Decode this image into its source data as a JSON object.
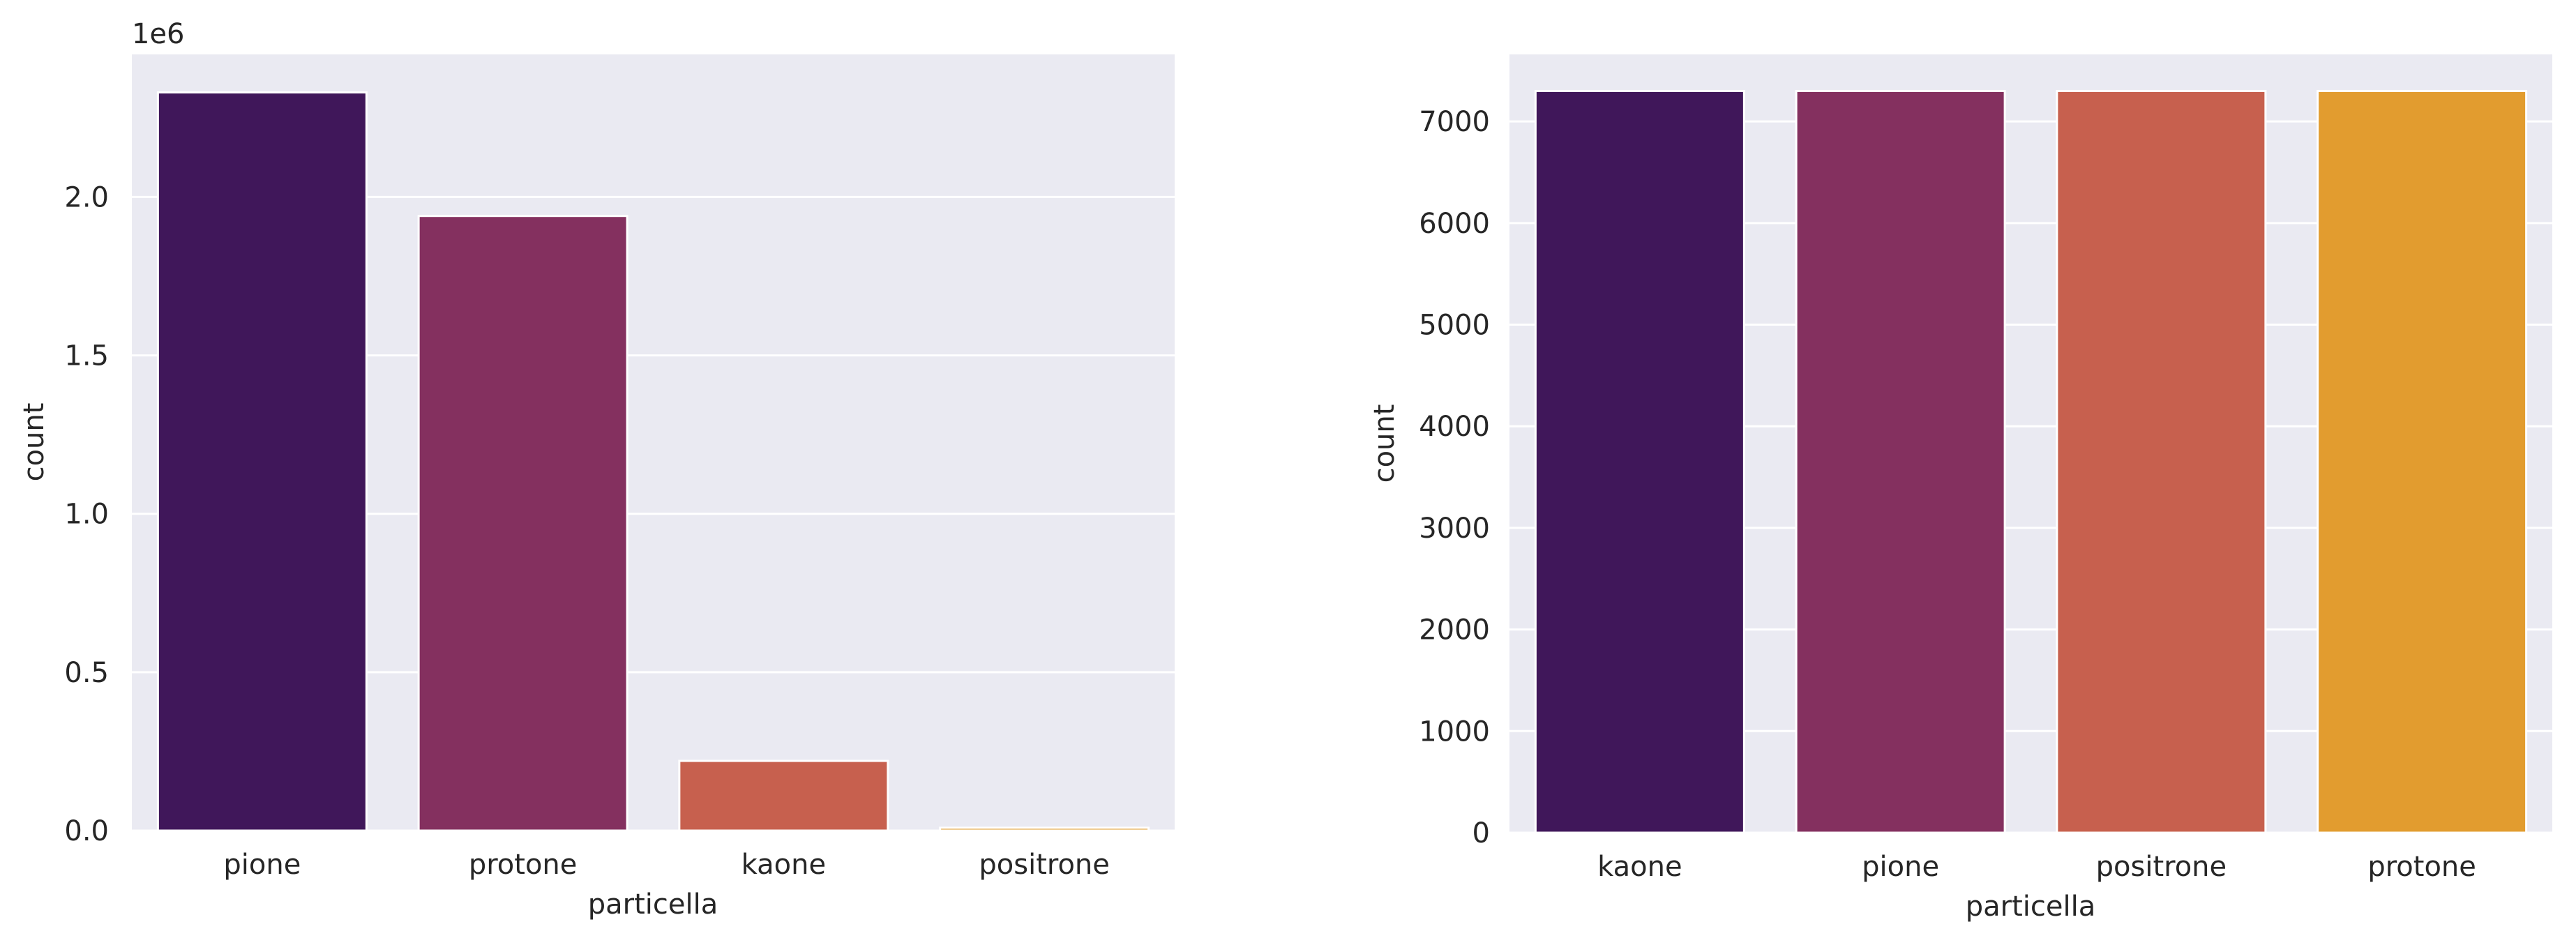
{
  "chart_data": [
    {
      "type": "bar",
      "xlabel": "particella",
      "ylabel": "count",
      "offset_label": "1e6",
      "categories": [
        "pione",
        "protone",
        "kaone",
        "positrone"
      ],
      "values": [
        2330000,
        1940000,
        220000,
        9000
      ],
      "colors": [
        "#40175a",
        "#84305f",
        "#c7604e",
        "#e29c2f"
      ],
      "yticks": [
        0,
        500000,
        1000000,
        1500000,
        2000000
      ],
      "ytick_labels": [
        "0.0",
        "0.5",
        "1.0",
        "1.5",
        "2.0"
      ],
      "ylim": [
        0,
        2450000
      ],
      "grid": true,
      "background": "#eaeaf2"
    },
    {
      "type": "bar",
      "xlabel": "particella",
      "ylabel": "count",
      "categories": [
        "kaone",
        "pione",
        "positrone",
        "protone"
      ],
      "values": [
        7300,
        7300,
        7300,
        7300
      ],
      "colors": [
        "#40175a",
        "#84305f",
        "#c7604e",
        "#e29c2f"
      ],
      "yticks": [
        0,
        1000,
        2000,
        3000,
        4000,
        5000,
        6000,
        7000
      ],
      "ytick_labels": [
        "0",
        "1000",
        "2000",
        "3000",
        "4000",
        "5000",
        "6000",
        "7000"
      ],
      "ylim": [
        0,
        7660
      ],
      "grid": true,
      "background": "#eaeaf2"
    }
  ]
}
